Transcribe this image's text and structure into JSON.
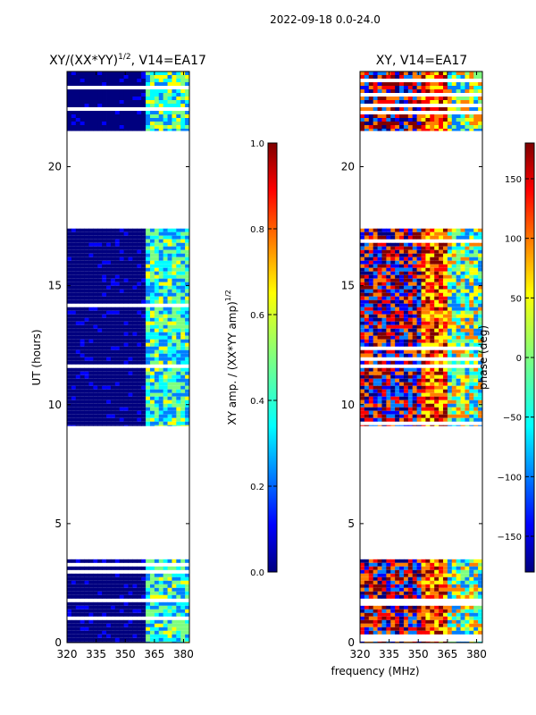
{
  "figure_title": "2022-09-18 0.0-24.0",
  "xlabel_shared": "frequency (MHz)",
  "colors": {
    "jet": [
      "#00007f",
      "#0000ff",
      "#007fff",
      "#00ffff",
      "#7fff7f",
      "#ffff00",
      "#ff7f00",
      "#ff0000",
      "#7f0000"
    ],
    "gap_white": "#ffffff",
    "axis": "#000000"
  },
  "chart_data": [
    {
      "type": "heatmap",
      "title": "XY/(XX*YY)^1/2, V14=EA17",
      "title_main": "XY/(XX*YY)",
      "title_sup": "1/2",
      "title_rest": ", V14=EA17",
      "xlabel": "",
      "ylabel": "UT (hours)",
      "xlim": [
        320,
        383
      ],
      "ylim": [
        0,
        24
      ],
      "xticks": [
        "320",
        "335",
        "350",
        "365",
        "380"
      ],
      "yticks": [
        "0",
        "5",
        "10",
        "15",
        "20"
      ],
      "data_ranges_hours": [
        [
          0.0,
          3.5
        ],
        [
          9.1,
          17.4
        ],
        [
          21.5,
          24.0
        ]
      ],
      "colorbar": {
        "label": "XY amp. / (XX*YY amp)^1/2",
        "label_main": "XY amp. / (XX*YY amp)",
        "label_sup": "1/2",
        "range": [
          0.0,
          1.0
        ],
        "ticks": [
          "0.0",
          "0.2",
          "0.4",
          "0.6",
          "0.8",
          "1.0"
        ]
      }
    },
    {
      "type": "heatmap",
      "title": "XY, V14=EA17",
      "xlabel": "frequency (MHz)",
      "ylabel": "",
      "xlim": [
        320,
        383
      ],
      "ylim": [
        0,
        24
      ],
      "xticks": [
        "320",
        "335",
        "350",
        "365",
        "380"
      ],
      "yticks": [
        "0",
        "5",
        "10",
        "15",
        "20"
      ],
      "data_ranges_hours": [
        [
          0.0,
          3.5
        ],
        [
          9.1,
          17.4
        ],
        [
          21.5,
          24.0
        ]
      ],
      "colorbar": {
        "label": "phase (deg)",
        "range": [
          -180,
          180
        ],
        "ticks": [
          "150",
          "100",
          "50",
          "0",
          "−50",
          "−100",
          "−150"
        ]
      }
    }
  ]
}
